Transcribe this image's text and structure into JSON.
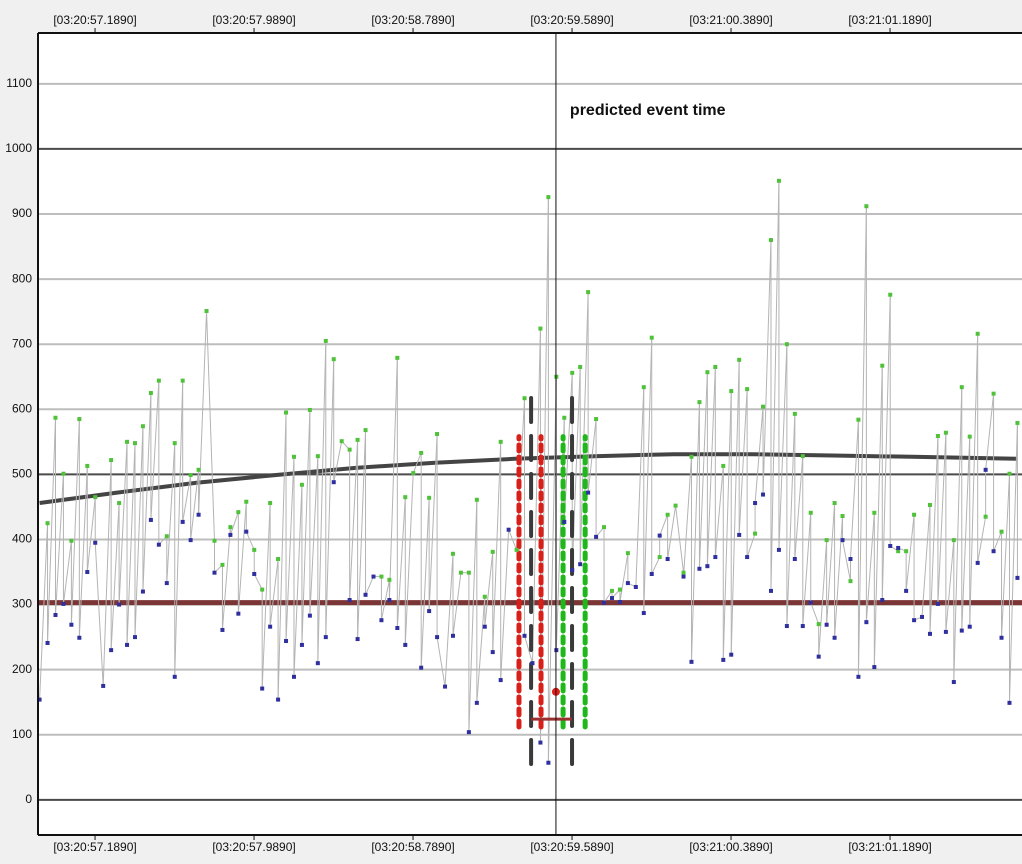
{
  "chart_data": {
    "type": "line",
    "annotation": {
      "text": "predicted event time",
      "x": 59.508
    },
    "xlim": [
      56.902,
      61.853
    ],
    "ylim": [
      -54,
      1175
    ],
    "xticks": [
      {
        "value": 57.189,
        "label": "[03:20:57.1890]"
      },
      {
        "value": 57.989,
        "label": "[03:20:57.9890]"
      },
      {
        "value": 58.789,
        "label": "[03:20:58.7890]"
      },
      {
        "value": 59.589,
        "label": "[03:20:59.5890]"
      },
      {
        "value": 60.389,
        "label": "[03:21:00.3890]"
      },
      {
        "value": 61.189,
        "label": "[03:21:01.1890]"
      }
    ],
    "yticks": [
      0,
      100,
      200,
      300,
      400,
      500,
      600,
      700,
      800,
      900,
      1000,
      1100
    ],
    "grid": true,
    "connector_color": "#b4b4b4",
    "x": [
      56.91,
      56.95,
      56.99,
      57.03,
      57.07,
      57.11,
      57.15,
      57.19,
      57.23,
      57.27,
      57.31,
      57.35,
      57.39,
      57.43,
      57.47,
      57.51,
      57.55,
      57.59,
      57.63,
      57.67,
      57.71,
      57.75,
      57.79,
      57.83,
      57.87,
      57.91,
      57.95,
      57.99,
      58.03,
      58.07,
      58.11,
      58.15,
      58.19,
      58.23,
      58.27,
      58.31,
      58.35,
      58.39,
      58.43,
      58.47,
      58.51,
      58.55,
      58.59,
      58.63,
      58.67,
      58.71,
      58.75,
      58.79,
      58.83,
      58.87,
      58.91,
      58.95,
      58.99,
      59.03,
      59.07,
      59.11,
      59.15,
      59.19,
      59.23,
      59.27,
      59.31,
      59.35,
      59.39,
      59.43,
      59.47,
      59.51,
      59.55,
      59.59,
      59.63,
      59.67,
      59.71,
      59.75,
      59.79,
      59.83,
      59.87,
      59.91,
      59.95,
      59.99,
      60.03,
      60.07,
      60.11,
      60.15,
      60.19,
      60.23,
      60.27,
      60.31,
      60.35,
      60.39,
      60.43,
      60.47,
      60.51,
      60.55,
      60.59,
      60.63,
      60.67,
      60.71,
      60.75,
      60.79,
      60.83,
      60.87,
      60.91,
      60.95,
      60.99,
      61.03,
      61.07,
      61.11,
      61.15,
      61.19,
      61.23,
      61.27,
      61.31,
      61.35,
      61.39,
      61.43,
      61.47,
      61.51,
      61.55,
      61.59,
      61.63,
      61.67,
      61.71,
      61.75,
      61.79,
      61.83
    ],
    "series": [
      {
        "color": "#4fc23a",
        "values": [
          null,
          425,
          587,
          501,
          398,
          585,
          513,
          465,
          null,
          522,
          456,
          550,
          548,
          574,
          625,
          644,
          405,
          548,
          644,
          499,
          507,
          751,
          398,
          361,
          419,
          442,
          458,
          384,
          323,
          456,
          370,
          595,
          527,
          484,
          599,
          528,
          705,
          677,
          551,
          538,
          553,
          568,
          null,
          343,
          338,
          679,
          465,
          502,
          533,
          464,
          562,
          null,
          378,
          349,
          349,
          461,
          312,
          381,
          550,
          null,
          384,
          617,
          null,
          724,
          926,
          650,
          587,
          656,
          665,
          780,
          585,
          419,
          321,
          323,
          379,
          null,
          634,
          710,
          373,
          438,
          452,
          349,
          527,
          611,
          657,
          665,
          513,
          628,
          676,
          631,
          409,
          604,
          860,
          951,
          700,
          593,
          528,
          441,
          270,
          399,
          456,
          436,
          336,
          584,
          912,
          441,
          667,
          776,
          382,
          382,
          438,
          null,
          453,
          559,
          564,
          399,
          634,
          558,
          716,
          435,
          624,
          412,
          501,
          579
        ]
      },
      {
        "color": "#2f2f9f",
        "values": [
          154,
          241,
          284,
          301,
          269,
          249,
          350,
          395,
          175,
          230,
          300,
          238,
          250,
          320,
          430,
          392,
          333,
          189,
          427,
          399,
          438,
          null,
          349,
          261,
          407,
          286,
          412,
          347,
          171,
          266,
          154,
          244,
          189,
          238,
          283,
          210,
          250,
          488,
          null,
          307,
          247,
          315,
          343,
          276,
          307,
          264,
          238,
          null,
          203,
          290,
          250,
          174,
          252,
          null,
          104,
          149,
          266,
          227,
          184,
          415,
          null,
          252,
          210,
          88,
          57,
          230,
          427,
          353,
          362,
          472,
          404,
          303,
          310,
          304,
          333,
          327,
          287,
          347,
          406,
          370,
          null,
          343,
          212,
          355,
          359,
          373,
          215,
          223,
          407,
          373,
          456,
          469,
          321,
          384,
          267,
          370,
          267,
          303,
          220,
          269,
          249,
          399,
          370,
          189,
          273,
          204,
          307,
          390,
          387,
          321,
          276,
          281,
          255,
          301,
          258,
          181,
          260,
          266,
          364,
          507,
          382,
          249,
          149,
          341
        ]
      }
    ],
    "trend": {
      "color": "#444444",
      "x": [
        56.91,
        57.3,
        57.7,
        58.1,
        58.5,
        58.9,
        59.3,
        59.7,
        60.1,
        60.5,
        60.9,
        61.3,
        61.83
      ],
      "values": [
        456,
        472,
        487,
        499,
        510,
        518,
        524,
        528,
        531,
        531,
        529,
        527,
        524
      ]
    },
    "threshold": {
      "value": 303,
      "color": "#7b3535"
    },
    "markers": [
      {
        "x": 59.322,
        "range": [
          112,
          558
        ],
        "color": "#d8201a",
        "style": "dotted"
      },
      {
        "x": 59.433,
        "range": [
          112,
          558
        ],
        "color": "#d8201a",
        "style": "dotted"
      },
      {
        "x": 59.383,
        "range": [
          55,
          619
        ],
        "color": "#3a3a3a",
        "style": "dashed"
      },
      {
        "x": 59.589,
        "range": [
          55,
          619
        ],
        "color": "#3a3a3a",
        "style": "dashed"
      },
      {
        "x": 59.544,
        "range": [
          112,
          558
        ],
        "color": "#1fb81a",
        "style": "dotted"
      },
      {
        "x": 59.655,
        "range": [
          112,
          558
        ],
        "color": "#1fb81a",
        "style": "dotted"
      }
    ],
    "event_point": {
      "x": 59.508,
      "y": 166,
      "color": "#e0201a"
    },
    "event_span": {
      "x": [
        59.383,
        59.589
      ],
      "y": 124,
      "color": "#9a3030"
    }
  }
}
